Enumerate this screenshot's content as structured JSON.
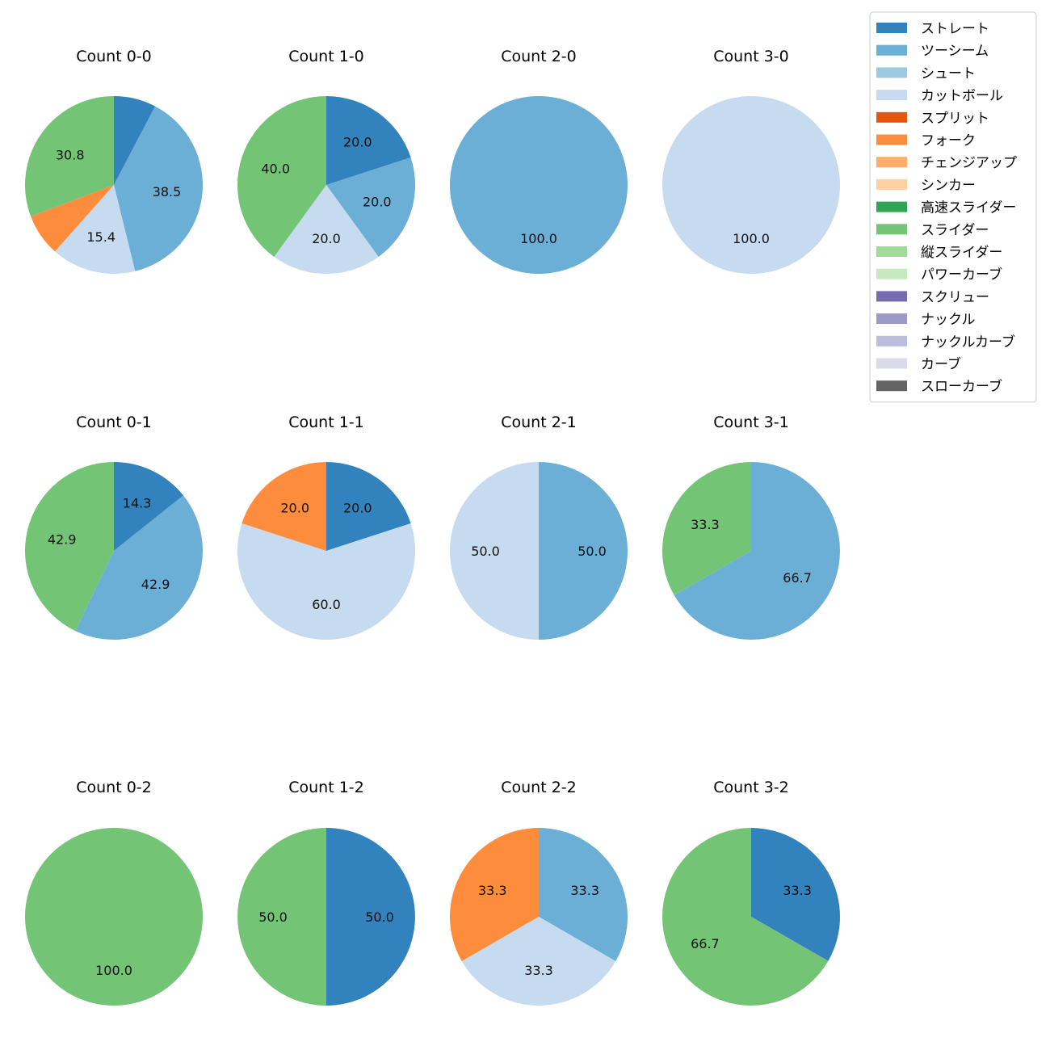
{
  "chart_data": {
    "type": "pie",
    "legend_position": "top-right",
    "legend": [
      {
        "label": "ストレート",
        "color": "#3182bd"
      },
      {
        "label": "ツーシーム",
        "color": "#6baed6"
      },
      {
        "label": "シュート",
        "color": "#9ecae1"
      },
      {
        "label": "カットボール",
        "color": "#c6dbef"
      },
      {
        "label": "スプリット",
        "color": "#e6550d"
      },
      {
        "label": "フォーク",
        "color": "#fd8d3c"
      },
      {
        "label": "チェンジアップ",
        "color": "#fdae6b"
      },
      {
        "label": "シンカー",
        "color": "#fdd0a2"
      },
      {
        "label": "高速スライダー",
        "color": "#31a354"
      },
      {
        "label": "スライダー",
        "color": "#74c476"
      },
      {
        "label": "縦スライダー",
        "color": "#a1d99b"
      },
      {
        "label": "パワーカーブ",
        "color": "#c7e9c0"
      },
      {
        "label": "スクリュー",
        "color": "#756bb1"
      },
      {
        "label": "ナックル",
        "color": "#9e9ac8"
      },
      {
        "label": "ナックルカーブ",
        "color": "#bcbddc"
      },
      {
        "label": "カーブ",
        "color": "#dadaeb"
      },
      {
        "label": "スローカーブ",
        "color": "#636363"
      }
    ],
    "pies": [
      {
        "title": "Count 0-0",
        "slices": [
          {
            "pitch": "ストレート",
            "value": 7.7,
            "label": ""
          },
          {
            "pitch": "ツーシーム",
            "value": 38.5,
            "label": "38.5"
          },
          {
            "pitch": "カットボール",
            "value": 15.4,
            "label": "15.4"
          },
          {
            "pitch": "フォーク",
            "value": 7.7,
            "label": ""
          },
          {
            "pitch": "スライダー",
            "value": 30.8,
            "label": "30.8"
          }
        ]
      },
      {
        "title": "Count 1-0",
        "slices": [
          {
            "pitch": "ストレート",
            "value": 20.0,
            "label": "20.0"
          },
          {
            "pitch": "ツーシーム",
            "value": 20.0,
            "label": "20.0"
          },
          {
            "pitch": "カットボール",
            "value": 20.0,
            "label": "20.0"
          },
          {
            "pitch": "スライダー",
            "value": 40.0,
            "label": "40.0"
          }
        ]
      },
      {
        "title": "Count 2-0",
        "slices": [
          {
            "pitch": "ツーシーム",
            "value": 100.0,
            "label": "100.0"
          }
        ]
      },
      {
        "title": "Count 3-0",
        "slices": [
          {
            "pitch": "カットボール",
            "value": 100.0,
            "label": "100.0"
          }
        ]
      },
      {
        "title": "Count 0-1",
        "slices": [
          {
            "pitch": "ストレート",
            "value": 14.3,
            "label": "14.3"
          },
          {
            "pitch": "ツーシーム",
            "value": 42.9,
            "label": "42.9"
          },
          {
            "pitch": "スライダー",
            "value": 42.9,
            "label": "42.9"
          }
        ]
      },
      {
        "title": "Count 1-1",
        "slices": [
          {
            "pitch": "ストレート",
            "value": 20.0,
            "label": "20.0"
          },
          {
            "pitch": "カットボール",
            "value": 60.0,
            "label": "60.0"
          },
          {
            "pitch": "フォーク",
            "value": 20.0,
            "label": "20.0"
          }
        ]
      },
      {
        "title": "Count 2-1",
        "slices": [
          {
            "pitch": "ツーシーム",
            "value": 50.0,
            "label": "50.0"
          },
          {
            "pitch": "カットボール",
            "value": 50.0,
            "label": "50.0"
          }
        ]
      },
      {
        "title": "Count 3-1",
        "slices": [
          {
            "pitch": "ツーシーム",
            "value": 66.7,
            "label": "66.7"
          },
          {
            "pitch": "スライダー",
            "value": 33.3,
            "label": "33.3"
          }
        ]
      },
      {
        "title": "Count 0-2",
        "slices": [
          {
            "pitch": "スライダー",
            "value": 100.0,
            "label": "100.0"
          }
        ]
      },
      {
        "title": "Count 1-2",
        "slices": [
          {
            "pitch": "ストレート",
            "value": 50.0,
            "label": "50.0"
          },
          {
            "pitch": "スライダー",
            "value": 50.0,
            "label": "50.0"
          }
        ]
      },
      {
        "title": "Count 2-2",
        "slices": [
          {
            "pitch": "ツーシーム",
            "value": 33.3,
            "label": "33.3"
          },
          {
            "pitch": "カットボール",
            "value": 33.3,
            "label": "33.3"
          },
          {
            "pitch": "フォーク",
            "value": 33.3,
            "label": "33.3"
          }
        ]
      },
      {
        "title": "Count 3-2",
        "slices": [
          {
            "pitch": "ストレート",
            "value": 33.3,
            "label": "33.3"
          },
          {
            "pitch": "スライダー",
            "value": 66.7,
            "label": "66.7"
          }
        ]
      }
    ]
  }
}
